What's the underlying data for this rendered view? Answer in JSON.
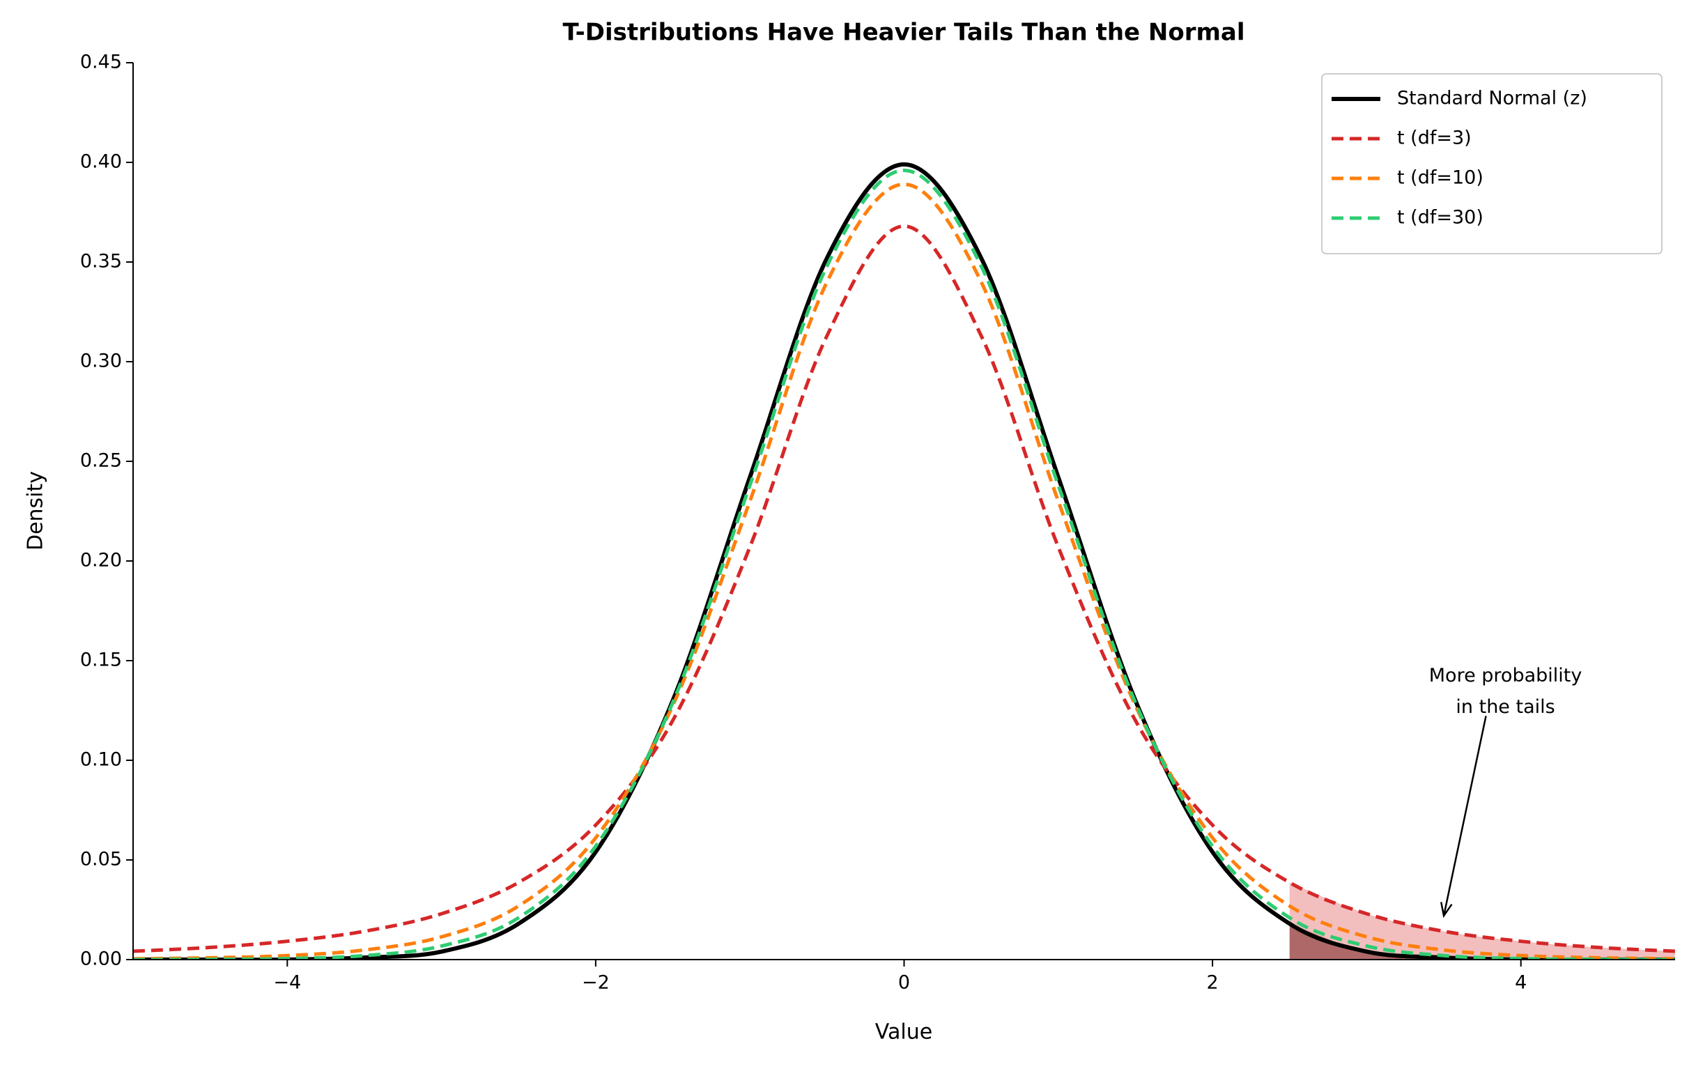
{
  "chart_data": {
    "type": "line",
    "title": "T-Distributions Have Heavier Tails Than the Normal",
    "x_label": "Value",
    "y_label": "Density",
    "x": [
      -5,
      -4.5,
      -4,
      -3.5,
      -3,
      -2.5,
      -2,
      -1.5,
      -1,
      -0.5,
      0,
      0.5,
      1,
      1.5,
      2,
      2.5,
      3,
      3.5,
      4,
      4.5,
      5
    ],
    "series": [
      {
        "name": "Standard Normal (z)",
        "color": "#000000",
        "dashed": false,
        "values": [
          0.0,
          0.0,
          0.0,
          0.001,
          0.004,
          0.018,
          0.054,
          0.13,
          0.242,
          0.352,
          0.399,
          0.352,
          0.242,
          0.13,
          0.054,
          0.018,
          0.004,
          0.001,
          0.0,
          0.0,
          0.0
        ]
      },
      {
        "name": "t (df=3)",
        "color": "#d62728",
        "dashed": true,
        "values": [
          0.0042,
          0.0061,
          0.0092,
          0.0142,
          0.023,
          0.0387,
          0.0675,
          0.12,
          0.207,
          0.313,
          0.368,
          0.313,
          0.207,
          0.12,
          0.0675,
          0.0387,
          0.023,
          0.0142,
          0.0092,
          0.0061,
          0.0042
        ]
      },
      {
        "name": "t (df=10)",
        "color": "#ff7f0e",
        "dashed": true,
        "values": [
          0.0004,
          0.0009,
          0.002,
          0.0048,
          0.0114,
          0.0269,
          0.0611,
          0.1275,
          0.23,
          0.34,
          0.389,
          0.34,
          0.23,
          0.1275,
          0.0611,
          0.0269,
          0.0114,
          0.0048,
          0.002,
          0.0009,
          0.0004
        ]
      },
      {
        "name": "t (df=30)",
        "color": "#2ecc71",
        "dashed": true,
        "values": [
          0.0,
          0.0001,
          0.0005,
          0.002,
          0.0068,
          0.021,
          0.0569,
          0.129,
          0.238,
          0.348,
          0.396,
          0.348,
          0.238,
          0.129,
          0.0569,
          0.021,
          0.0068,
          0.002,
          0.0005,
          0.0001,
          0.0
        ]
      }
    ],
    "xlim": [
      -5,
      5
    ],
    "ylim": [
      0,
      0.45
    ],
    "xticks": [
      {
        "value": -4,
        "label": "−4"
      },
      {
        "value": -2,
        "label": "−2"
      },
      0,
      2,
      4
    ],
    "yticks": [
      {
        "value": 0,
        "label": "0.00"
      },
      {
        "value": 0.05,
        "label": "0.05"
      },
      {
        "value": 0.1,
        "label": "0.10"
      },
      {
        "value": 0.15,
        "label": "0.15"
      },
      {
        "value": 0.2,
        "label": "0.20"
      },
      {
        "value": 0.25,
        "label": "0.25"
      },
      {
        "value": 0.3,
        "label": "0.30"
      },
      {
        "value": 0.35,
        "label": "0.35"
      },
      {
        "value": 0.4,
        "label": "0.40"
      },
      {
        "value": 0.45,
        "label": "0.45"
      }
    ],
    "tail_shade_from": 2.5,
    "legend": "upper right",
    "annotation": {
      "lines": [
        "More probability",
        "in the tails"
      ],
      "xy": [
        3.5,
        0.022
      ],
      "xytext": [
        3.9,
        0.11
      ]
    }
  }
}
